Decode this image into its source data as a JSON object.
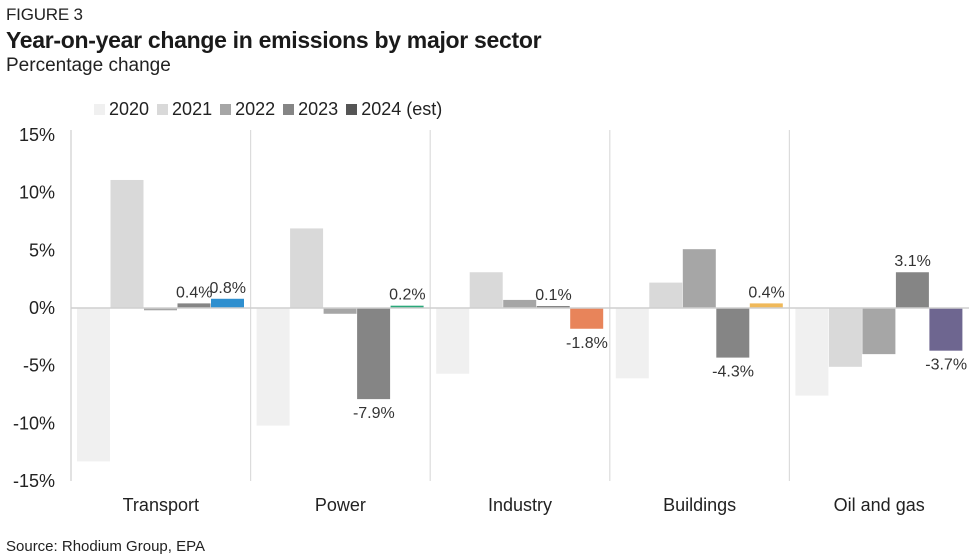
{
  "figure_label": "FIGURE 3",
  "title": "Year-on-year change in emissions by major sector",
  "subtitle": "Percentage change",
  "source": "Source: Rhodium Group, EPA",
  "chart_data": {
    "type": "bar",
    "title": "Year-on-year change in emissions by major sector",
    "subtitle": "Percentage change",
    "xlabel": "",
    "ylabel": "Percentage change",
    "ylim": [
      -15,
      15
    ],
    "yticks": [
      15,
      10,
      5,
      0,
      -5,
      -10,
      -15
    ],
    "ytick_labels": [
      "15%",
      "10%",
      "5%",
      "0%",
      "-5%",
      "-10%",
      "-15%"
    ],
    "grid": false,
    "legend_position": "top",
    "categories": [
      "Transport",
      "Power",
      "Industry",
      "Buildings",
      "Oil and gas"
    ],
    "series": [
      {
        "name": "2020",
        "color": "#f0f0f0",
        "values": [
          -13.3,
          -10.2,
          -5.7,
          -6.1,
          -7.6
        ]
      },
      {
        "name": "2021",
        "color": "#d9d9d9",
        "values": [
          11.1,
          6.9,
          3.1,
          2.2,
          -5.1
        ]
      },
      {
        "name": "2022",
        "color": "#a6a6a6",
        "values": [
          -0.2,
          -0.5,
          0.7,
          5.1,
          -4.0
        ]
      },
      {
        "name": "2023",
        "color": "#858585",
        "values": [
          0.4,
          -7.9,
          0.1,
          -4.3,
          3.1
        ]
      },
      {
        "name": "2024 (est)",
        "color": "#555555",
        "values": [
          0.8,
          0.2,
          -1.8,
          0.4,
          -3.7
        ]
      }
    ],
    "highlight_colors_2024": [
      "#2e8fcf",
      "#2aa87a",
      "#e8845a",
      "#f0b95a",
      "#6e6690"
    ],
    "data_labels": [
      {
        "category": "Transport",
        "series": "2023",
        "text": "0.4%"
      },
      {
        "category": "Transport",
        "series": "2024 (est)",
        "text": "0.8%"
      },
      {
        "category": "Power",
        "series": "2023",
        "text": "-7.9%"
      },
      {
        "category": "Power",
        "series": "2024 (est)",
        "text": "0.2%"
      },
      {
        "category": "Industry",
        "series": "2023",
        "text": "0.1%"
      },
      {
        "category": "Industry",
        "series": "2024 (est)",
        "text": "-1.8%"
      },
      {
        "category": "Buildings",
        "series": "2023",
        "text": "-4.3%"
      },
      {
        "category": "Buildings",
        "series": "2024 (est)",
        "text": "0.4%"
      },
      {
        "category": "Oil and gas",
        "series": "2023",
        "text": "3.1%"
      },
      {
        "category": "Oil and gas",
        "series": "2024 (est)",
        "text": "-3.7%"
      }
    ]
  }
}
